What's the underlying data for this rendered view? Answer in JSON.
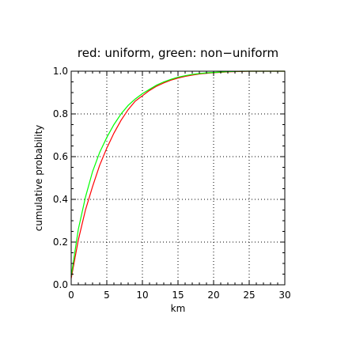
{
  "chart_data": {
    "type": "line",
    "title": "red: uniform, green: non−uniform",
    "xlabel": "km",
    "ylabel": "cumulative probability",
    "xlim": [
      0,
      30
    ],
    "ylim": [
      0,
      1
    ],
    "xticks": [
      0,
      5,
      10,
      15,
      20,
      25,
      30
    ],
    "yticks": [
      0.0,
      0.2,
      0.4,
      0.6,
      0.8,
      1.0
    ],
    "xtick_labels": [
      "0",
      "5",
      "10",
      "15",
      "20",
      "25",
      "30"
    ],
    "ytick_labels": [
      "0.0",
      "0.2",
      "0.4",
      "0.6",
      "0.8",
      "1.0"
    ],
    "grid": true,
    "series": [
      {
        "color": "#ff0000",
        "x": [
          0,
          1,
          2,
          3,
          4,
          5,
          6,
          7,
          8,
          9,
          10,
          11,
          12,
          13,
          14,
          15,
          16,
          17,
          18,
          19,
          20,
          21,
          22,
          23,
          24,
          25,
          26,
          27,
          28,
          29,
          30
        ],
        "y": [
          0.03,
          0.21,
          0.35,
          0.46,
          0.56,
          0.64,
          0.71,
          0.77,
          0.82,
          0.86,
          0.885,
          0.91,
          0.93,
          0.945,
          0.958,
          0.968,
          0.976,
          0.982,
          0.987,
          0.99,
          0.993,
          0.995,
          0.997,
          0.998,
          0.999,
          1.0,
          1.0,
          1.0,
          1.0,
          1.0,
          1.0
        ]
      },
      {
        "color": "#00ff00",
        "x": [
          0,
          1,
          2,
          3,
          4,
          5,
          6,
          7,
          8,
          9,
          10,
          11,
          12,
          13,
          14,
          15,
          16,
          17,
          18,
          19,
          20,
          21,
          22,
          23,
          24,
          25,
          26,
          27,
          28,
          29,
          30
        ],
        "y": [
          0.04,
          0.26,
          0.41,
          0.53,
          0.62,
          0.69,
          0.75,
          0.8,
          0.84,
          0.87,
          0.895,
          0.915,
          0.935,
          0.95,
          0.962,
          0.972,
          0.979,
          0.985,
          0.989,
          0.992,
          0.994,
          0.996,
          0.998,
          0.999,
          1.0,
          1.0,
          1.0,
          1.0,
          1.0,
          1.0,
          1.0
        ]
      }
    ]
  }
}
